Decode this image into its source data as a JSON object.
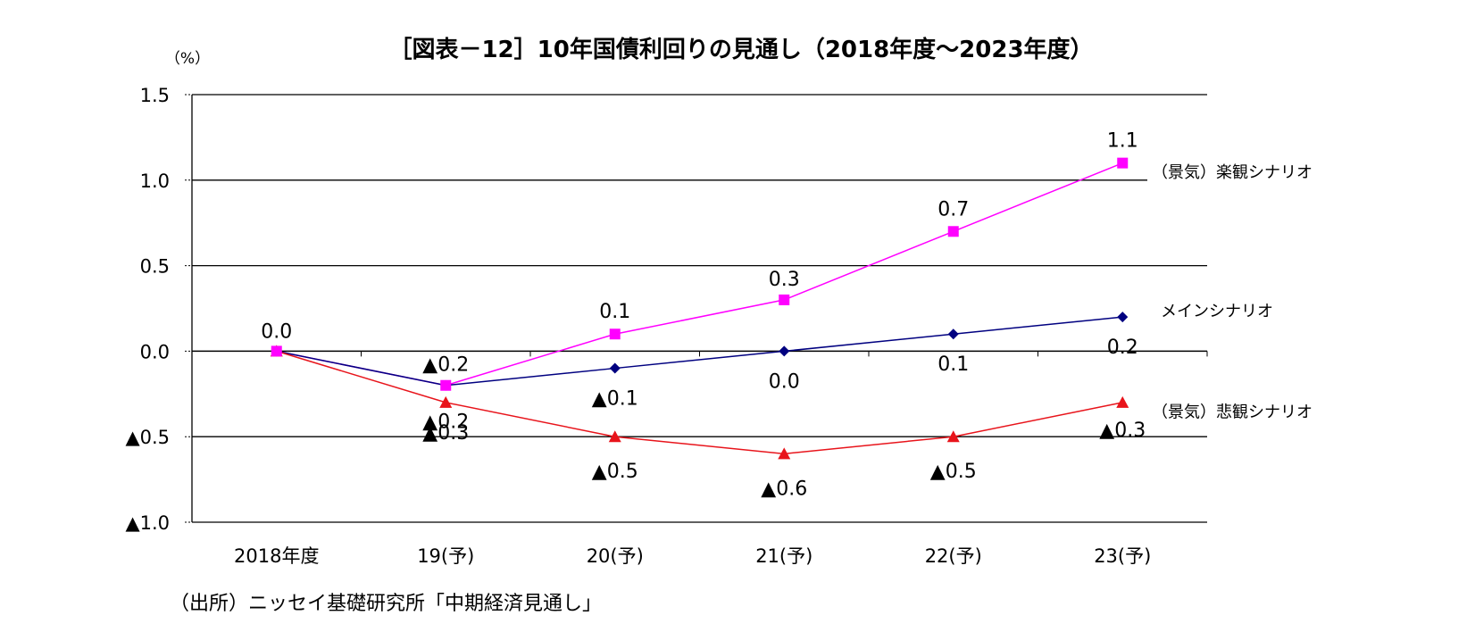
{
  "chart_data": {
    "type": "line",
    "title": "［図表－12］10年国債利回りの見通し（2018年度～2023年度）",
    "y_unit": "（%）",
    "source": "（出所）ニッセイ基礎研究所「中期経済見通し」",
    "categories": [
      "2018年度",
      "19(予)",
      "20(予)",
      "21(予)",
      "22(予)",
      "23(予)"
    ],
    "ylim": [
      -1.0,
      1.5
    ],
    "yticks": [
      1.5,
      1.0,
      0.5,
      0.0,
      -0.5,
      -1.0
    ],
    "ytick_labels": [
      "1.5",
      "1.0",
      "0.5",
      "0.0",
      "▲0.5",
      "▲1.0"
    ],
    "grid": true,
    "series": [
      {
        "name": "（景気）楽観シナリオ",
        "color": "#FF00FF",
        "marker": "square",
        "values": [
          0.0,
          -0.2,
          0.1,
          0.3,
          0.7,
          1.1
        ],
        "data_labels": [
          "0.0",
          "▲0.2",
          "0.1",
          "0.3",
          "0.7",
          "1.1"
        ]
      },
      {
        "name": "メインシナリオ",
        "color": "#000080",
        "marker": "diamond",
        "values": [
          0.0,
          -0.2,
          -0.1,
          0.0,
          0.1,
          0.2
        ],
        "data_labels": [
          "",
          "▲0.2",
          "▲0.1",
          "0.0",
          "0.1",
          "0.2"
        ]
      },
      {
        "name": "（景気）悲観シナリオ",
        "color": "#E8141B",
        "marker": "triangle",
        "values": [
          0.0,
          -0.3,
          -0.5,
          -0.6,
          -0.5,
          -0.3
        ],
        "data_labels": [
          "",
          "▲0.3",
          "▲0.5",
          "▲0.6",
          "▲0.5",
          "▲0.3"
        ]
      }
    ]
  }
}
